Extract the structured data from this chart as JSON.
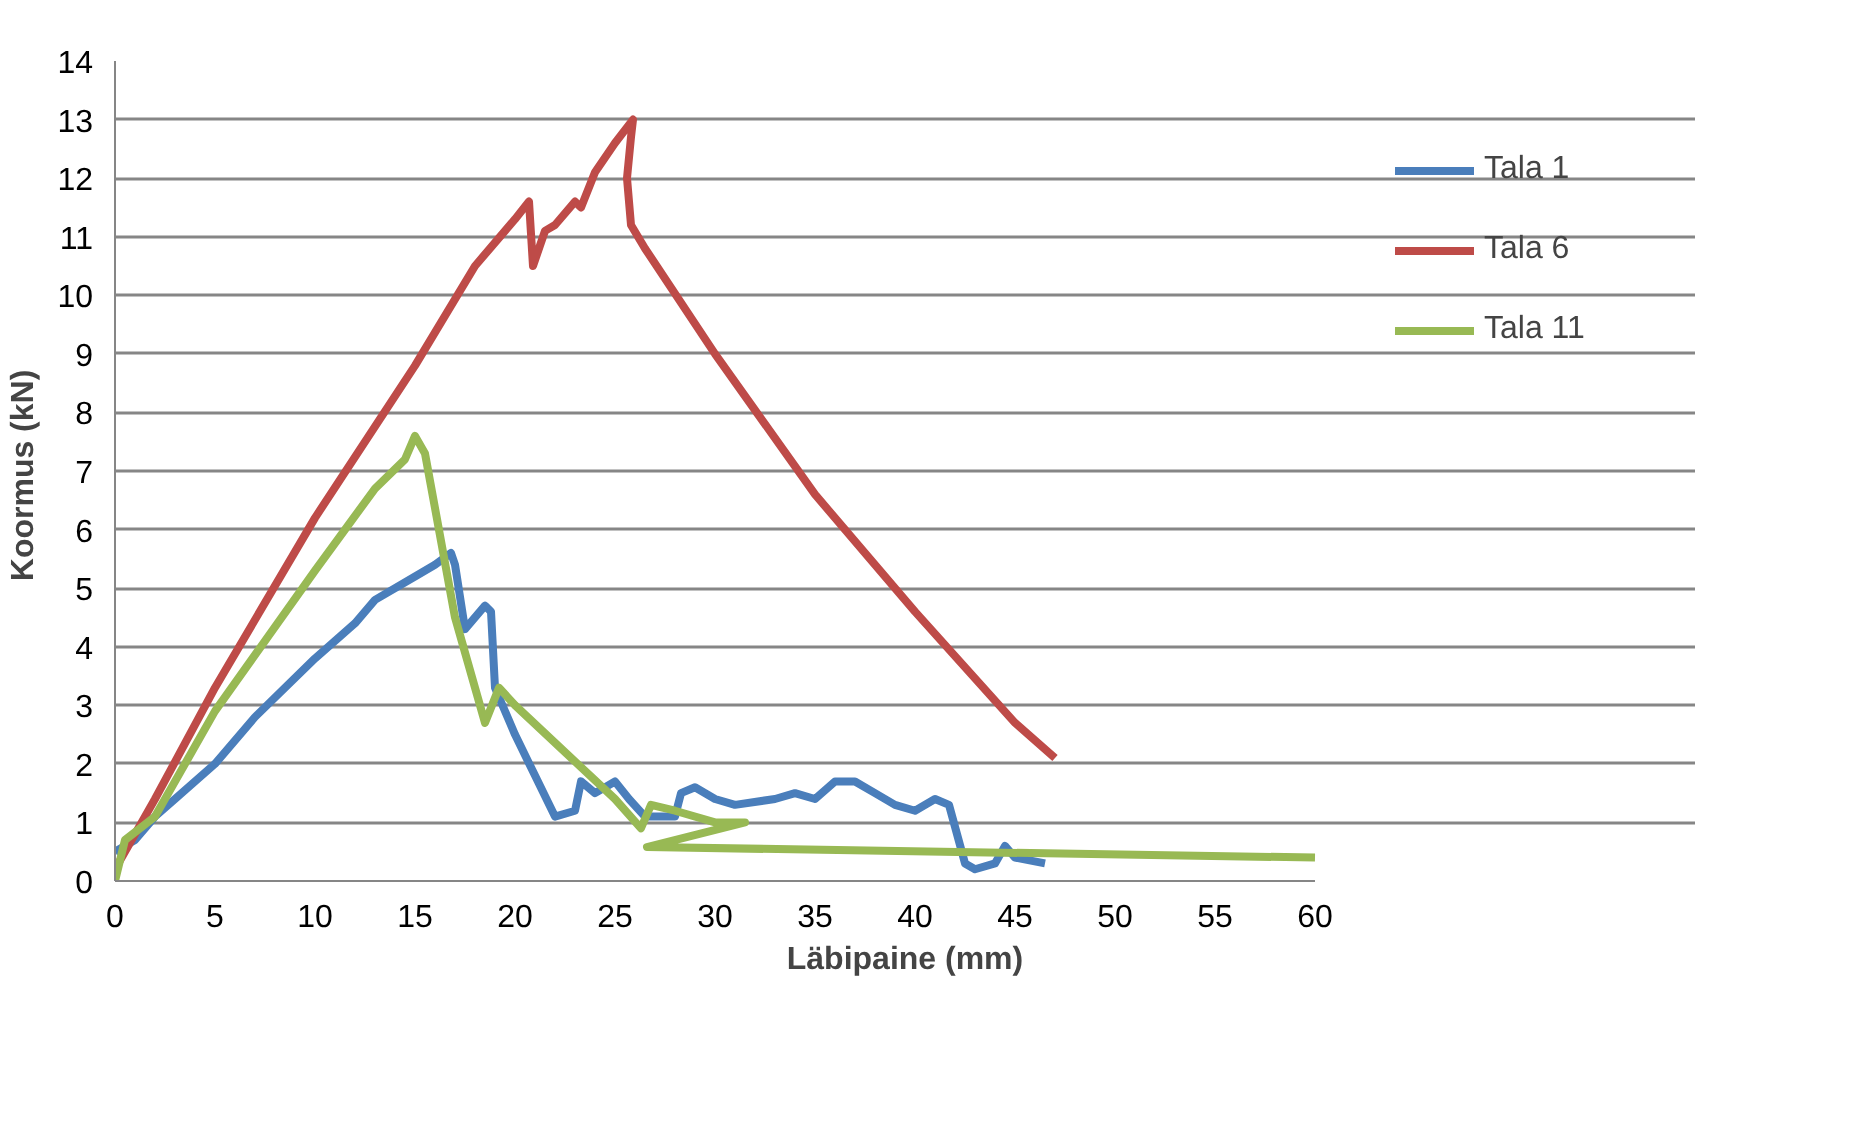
{
  "chart_data": {
    "type": "line",
    "xlabel": "Läbipaine (mm)",
    "ylabel": "Koormus  (kN)",
    "xlim": [
      0,
      60
    ],
    "xticks": [
      0,
      5,
      10,
      15,
      20,
      25,
      30,
      35,
      40,
      45,
      50,
      55,
      60
    ],
    "ylim": [
      0,
      14
    ],
    "yticks": [
      0,
      1,
      2,
      3,
      4,
      5,
      6,
      7,
      8,
      9,
      10,
      11,
      12,
      13,
      14
    ],
    "grid": "y",
    "legend": "right",
    "line_style": "solid",
    "series": [
      {
        "name": "Tala 1",
        "color": "#4a7ebb",
        "x": [
          0,
          0.5,
          1,
          2,
          3,
          5,
          7,
          10,
          12,
          13,
          15,
          16,
          16.8,
          17,
          17.5,
          18.5,
          18.8,
          19,
          20,
          21,
          22,
          23,
          23.3,
          24,
          25,
          25.7,
          26.5,
          28,
          28.3,
          29,
          30,
          31,
          33,
          34,
          35,
          36,
          37,
          38,
          39,
          40,
          41,
          41.7,
          42.5,
          43,
          44,
          44.5,
          45,
          46.5
        ],
        "values": [
          0.5,
          0.6,
          0.7,
          1.1,
          1.4,
          2.0,
          2.8,
          3.8,
          4.4,
          4.8,
          5.2,
          5.4,
          5.6,
          5.4,
          4.3,
          4.7,
          4.6,
          3.3,
          2.5,
          1.8,
          1.1,
          1.2,
          1.7,
          1.5,
          1.7,
          1.4,
          1.1,
          1.1,
          1.5,
          1.6,
          1.4,
          1.3,
          1.4,
          1.5,
          1.4,
          1.7,
          1.7,
          1.5,
          1.3,
          1.2,
          1.4,
          1.3,
          0.3,
          0.2,
          0.3,
          0.6,
          0.4,
          0.3
        ]
      },
      {
        "name": "Tala 6",
        "color": "#be4b48",
        "x": [
          0,
          2,
          5,
          10,
          15,
          18,
          20,
          20.7,
          20.9,
          21.5,
          22,
          23,
          23.3,
          24,
          25,
          25.9,
          25.8,
          25.6,
          25.8,
          26.5,
          30,
          35,
          40,
          45,
          47
        ],
        "values": [
          0.2,
          1.4,
          3.3,
          6.2,
          8.8,
          10.5,
          11.3,
          11.6,
          10.5,
          11.1,
          11.2,
          11.6,
          11.5,
          12.1,
          12.6,
          13.0,
          12.7,
          12.0,
          11.2,
          10.8,
          9.0,
          6.6,
          4.6,
          2.7,
          2.1
        ]
      },
      {
        "name": "Tala 11",
        "color": "#98b954",
        "x": [
          0,
          0.5,
          2,
          5,
          10,
          13,
          14.5,
          15,
          15.5,
          17,
          18.5,
          19.2,
          20,
          25,
          26.3,
          26.8,
          28,
          30,
          31.5,
          26.6,
          60
        ],
        "values": [
          0,
          0.7,
          1.1,
          2.9,
          5.3,
          6.7,
          7.2,
          7.6,
          7.3,
          4.5,
          2.7,
          3.3,
          3.0,
          1.4,
          0.9,
          1.3,
          1.2,
          1.0,
          1.0,
          0.58,
          0.4
        ]
      }
    ]
  }
}
